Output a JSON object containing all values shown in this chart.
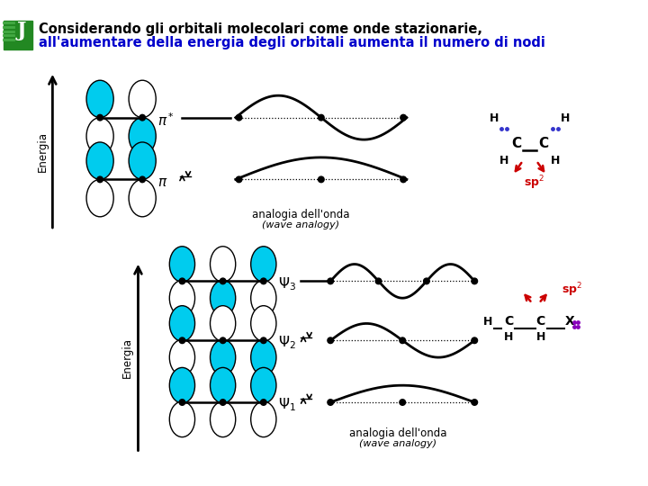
{
  "title_line1": "Considerando gli orbitali molecolari come onde stazionarie,",
  "title_line2": "all'aumentare della energia degli orbitali aumenta il numero di nodi",
  "title_line1_color": "#000000",
  "title_line2_color": "#0000cc",
  "bg_color": "#ffffff",
  "cyan_color": "#00ccee",
  "red_color": "#cc0000",
  "nota_analogia": "analogia dell'onda",
  "nota_wave": "(wave analogy)"
}
